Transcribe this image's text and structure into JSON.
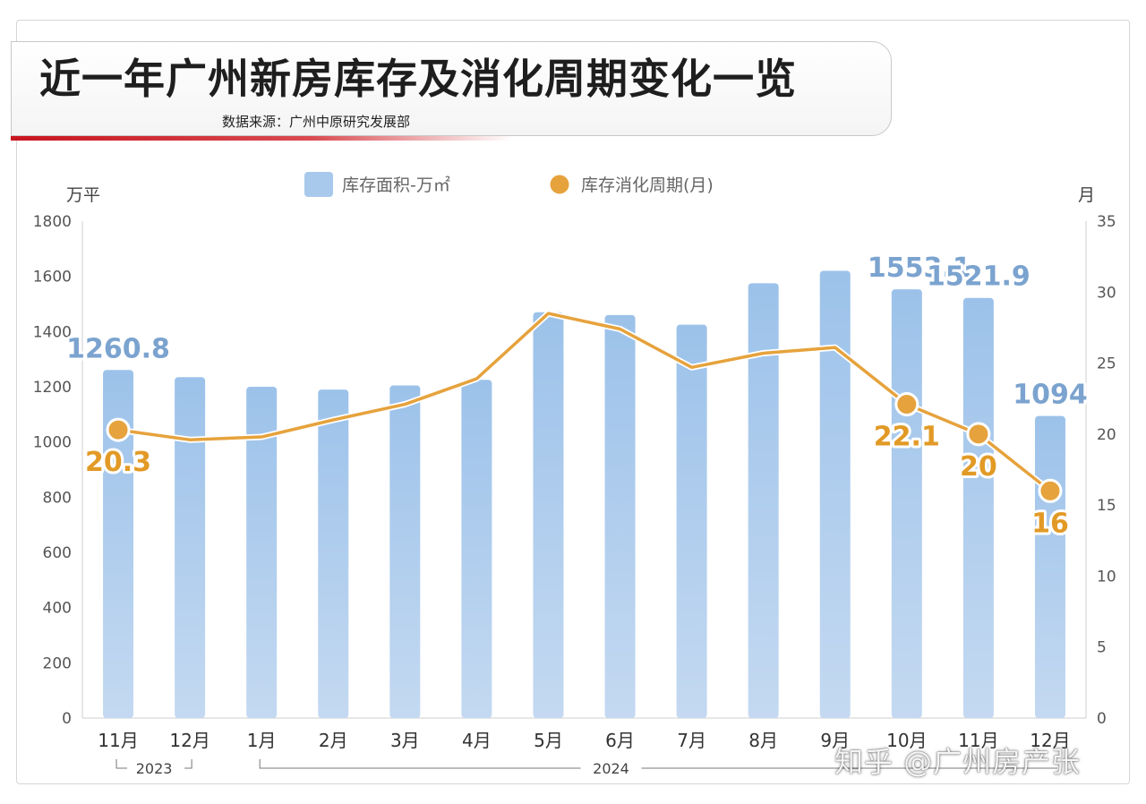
{
  "header": {
    "title": "近一年广州新房库存及消化周期变化一览",
    "source": "数据来源：广州中原研究发展部"
  },
  "watermark": "知乎 @广州房产张",
  "colors": {
    "bar": "#a9c9ec",
    "line": "#e6a23c",
    "bar_label": "#7ba3cf",
    "line_label": "#e29a26",
    "axis_text": "#555555",
    "accent_red": "#c8141e"
  },
  "chart_data": {
    "type": "bar",
    "categories": [
      "11月",
      "12月",
      "1月",
      "2月",
      "3月",
      "4月",
      "5月",
      "6月",
      "7月",
      "8月",
      "9月",
      "10月",
      "11月",
      "12月"
    ],
    "year_groups": [
      {
        "label": "2023",
        "from": 0,
        "to": 1
      },
      {
        "label": "2024",
        "from": 2,
        "to": 13
      }
    ],
    "series": [
      {
        "name": "库存面积-万㎡",
        "type": "bar",
        "axis": "left",
        "values": [
          1260.8,
          1235,
          1200,
          1190,
          1205,
          1225,
          1470,
          1460,
          1425,
          1575,
          1620,
          1553.1,
          1521.9,
          1094
        ],
        "labels": [
          {
            "index": 0,
            "text": "1260.8"
          },
          {
            "index": 11,
            "text": "1553.1"
          },
          {
            "index": 12,
            "text": "1521.9"
          },
          {
            "index": 13,
            "text": "1094"
          }
        ]
      },
      {
        "name": "库存消化周期(月)",
        "type": "line",
        "axis": "right",
        "values": [
          20.3,
          19.6,
          19.8,
          21.0,
          22.1,
          23.9,
          28.5,
          27.4,
          24.7,
          25.7,
          26.1,
          22.1,
          20,
          16
        ],
        "labels": [
          {
            "index": 0,
            "text": "20.3"
          },
          {
            "index": 11,
            "text": "22.1"
          },
          {
            "index": 12,
            "text": "20"
          },
          {
            "index": 13,
            "text": "16"
          }
        ],
        "markers": [
          0,
          11,
          12,
          13
        ]
      }
    ],
    "y_left": {
      "unit": "万平",
      "min": 0,
      "max": 1800,
      "ticks": [
        0,
        200,
        400,
        600,
        800,
        1000,
        1200,
        1400,
        1600,
        1800
      ]
    },
    "y_right": {
      "unit": "月",
      "min": 0,
      "max": 35,
      "ticks": [
        0,
        5,
        10,
        15,
        20,
        25,
        30,
        35
      ]
    },
    "legend": {
      "position": "top-center"
    },
    "grid": false
  }
}
